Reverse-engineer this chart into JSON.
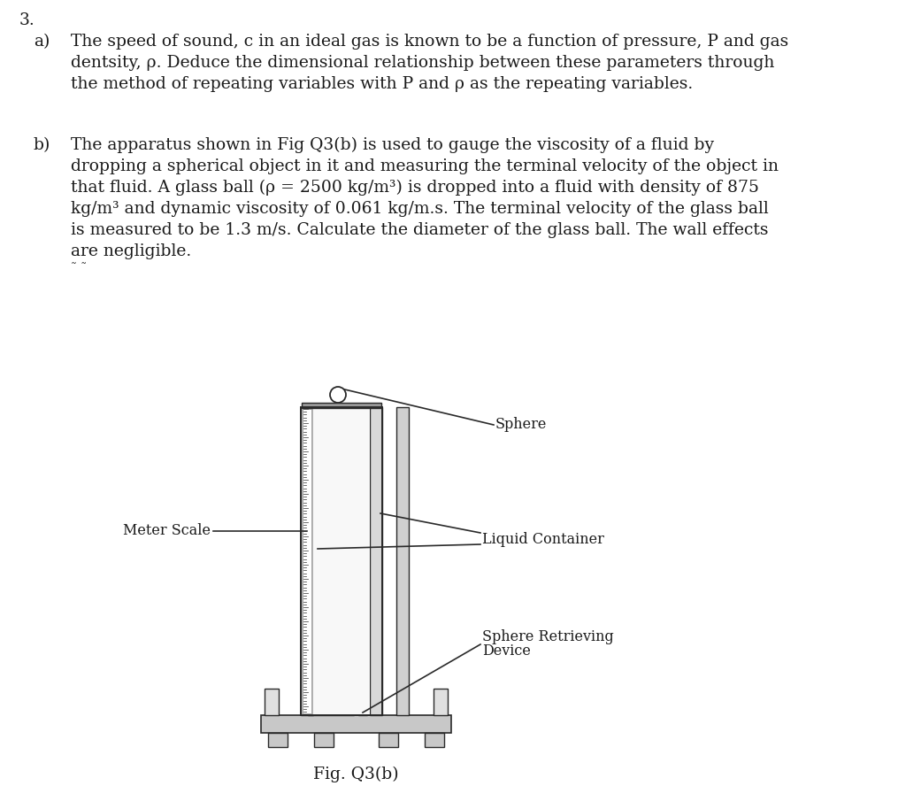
{
  "bg_color": "#ffffff",
  "question_number": "3.",
  "part_a_label": "a)",
  "part_a_text_line1": "The speed of sound, c in an ideal gas is known to be a function of pressure, P and gas",
  "part_a_text_line2": "dentsity, ρ. Deduce the dimensional relationship between these parameters through",
  "part_a_text_line3": "the method of repeating variables with P and ρ as the repeating variables.",
  "part_b_label": "b)",
  "part_b_text_line1": "The apparatus shown in Fig Q3(b) is used to gauge the viscosity of a fluid by",
  "part_b_text_line2": "dropping a spherical object in it and measuring the terminal velocity of the object in",
  "part_b_text_line3": "that fluid. A glass ball (ρ = 2500 kg/m³) is dropped into a fluid with density of 875",
  "part_b_text_line4": "kg/m³ and dynamic viscosity of 0.061 kg/m.s. The terminal velocity of the glass ball",
  "part_b_text_line5": "is measured to be 1.3 m/s. Calculate the diameter of the glass ball. The wall effects",
  "part_b_text_line6": "are negligible.",
  "label_meter_scale": "Meter Scale",
  "label_sphere": "Sphere",
  "label_liquid_container": "Liquid Container",
  "label_sphere_retrieving": "Sphere Retrieving",
  "label_device": "Device",
  "fig_caption": "Fig. Q3(b)",
  "text_color": "#1a1a1a",
  "diagram_color": "#2a2a2a",
  "font_size_text": 13.5,
  "font_size_label": 11.5,
  "font_size_caption": 13.5,
  "font_size_qnum": 13.5
}
